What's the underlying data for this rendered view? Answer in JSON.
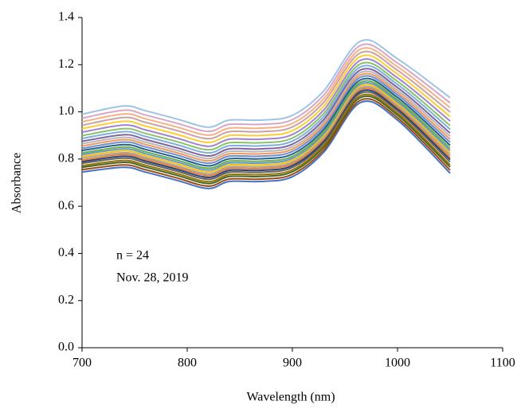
{
  "chart_data": {
    "type": "line",
    "x": [
      700,
      740,
      760,
      790,
      820,
      840,
      870,
      900,
      930,
      965,
      1000,
      1050
    ],
    "series": [
      {
        "color": "#4472c4",
        "values": [
          0.745,
          0.765,
          0.745,
          0.71,
          0.675,
          0.705,
          0.705,
          0.725,
          0.83,
          1.04,
          0.965,
          0.74
        ]
      },
      {
        "color": "#9e480e",
        "values": [
          0.755,
          0.775,
          0.755,
          0.72,
          0.685,
          0.715,
          0.715,
          0.735,
          0.84,
          1.05,
          0.975,
          0.753
        ]
      },
      {
        "color": "#43682b",
        "values": [
          0.765,
          0.786,
          0.766,
          0.731,
          0.696,
          0.726,
          0.726,
          0.746,
          0.851,
          1.061,
          0.986,
          0.766
        ]
      },
      {
        "color": "#997300",
        "values": [
          0.772,
          0.794,
          0.774,
          0.739,
          0.704,
          0.734,
          0.734,
          0.754,
          0.859,
          1.069,
          0.994,
          0.775
        ]
      },
      {
        "color": "#636363",
        "values": [
          0.782,
          0.804,
          0.784,
          0.749,
          0.714,
          0.744,
          0.744,
          0.764,
          0.869,
          1.079,
          1.004,
          0.788
        ]
      },
      {
        "color": "#264478",
        "values": [
          0.789,
          0.812,
          0.792,
          0.757,
          0.722,
          0.752,
          0.752,
          0.772,
          0.877,
          1.087,
          1.012,
          0.798
        ]
      },
      {
        "color": "#ed7d31",
        "values": [
          0.796,
          0.82,
          0.8,
          0.765,
          0.73,
          0.76,
          0.76,
          0.78,
          0.885,
          1.095,
          1.02,
          0.807
        ]
      },
      {
        "color": "#a5a5a5",
        "values": [
          0.804,
          0.827,
          0.807,
          0.772,
          0.737,
          0.767,
          0.767,
          0.787,
          0.892,
          1.102,
          1.027,
          0.817
        ]
      },
      {
        "color": "#ffc000",
        "values": [
          0.811,
          0.835,
          0.815,
          0.78,
          0.745,
          0.775,
          0.775,
          0.795,
          0.9,
          1.11,
          1.035,
          0.826
        ]
      },
      {
        "color": "#5b9bd5",
        "values": [
          0.819,
          0.843,
          0.823,
          0.788,
          0.753,
          0.783,
          0.783,
          0.803,
          0.908,
          1.118,
          1.043,
          0.836
        ]
      },
      {
        "color": "#70ad47",
        "values": [
          0.826,
          0.851,
          0.831,
          0.796,
          0.761,
          0.791,
          0.791,
          0.811,
          0.916,
          1.126,
          1.051,
          0.846
        ]
      },
      {
        "color": "#255e91",
        "values": [
          0.836,
          0.861,
          0.841,
          0.806,
          0.771,
          0.801,
          0.801,
          0.821,
          0.926,
          1.136,
          1.061,
          0.858
        ]
      },
      {
        "color": "#698ed0",
        "values": [
          0.845,
          0.872,
          0.852,
          0.817,
          0.782,
          0.812,
          0.812,
          0.832,
          0.937,
          1.147,
          1.072,
          0.871
        ]
      },
      {
        "color": "#f1975a",
        "values": [
          0.855,
          0.882,
          0.862,
          0.827,
          0.792,
          0.822,
          0.822,
          0.842,
          0.947,
          1.157,
          1.082,
          0.884
        ]
      },
      {
        "color": "#b7b7b7",
        "values": [
          0.865,
          0.892,
          0.872,
          0.837,
          0.802,
          0.832,
          0.832,
          0.852,
          0.957,
          1.167,
          1.092,
          0.897
        ]
      },
      {
        "color": "#8064a2",
        "values": [
          0.875,
          0.903,
          0.883,
          0.848,
          0.813,
          0.843,
          0.843,
          0.863,
          0.968,
          1.178,
          1.103,
          0.91
        ]
      },
      {
        "color": "#7cafdd",
        "values": [
          0.887,
          0.916,
          0.896,
          0.861,
          0.826,
          0.856,
          0.856,
          0.876,
          0.981,
          1.191,
          1.116,
          0.926
        ]
      },
      {
        "color": "#8cc168",
        "values": [
          0.899,
          0.929,
          0.909,
          0.874,
          0.839,
          0.869,
          0.869,
          0.889,
          0.994,
          1.204,
          1.129,
          0.942
        ]
      },
      {
        "color": "#9e86c9",
        "values": [
          0.914,
          0.944,
          0.924,
          0.889,
          0.854,
          0.884,
          0.884,
          0.904,
          1.009,
          1.219,
          1.144,
          0.961
        ]
      },
      {
        "color": "#ffcd33",
        "values": [
          0.929,
          0.96,
          0.94,
          0.905,
          0.87,
          0.9,
          0.9,
          0.92,
          1.025,
          1.235,
          1.16,
          0.98
        ]
      },
      {
        "color": "#c9a3a3",
        "values": [
          0.943,
          0.976,
          0.956,
          0.921,
          0.886,
          0.916,
          0.916,
          0.936,
          1.041,
          1.251,
          1.176,
          0.999
        ]
      },
      {
        "color": "#f4b183",
        "values": [
          0.958,
          0.991,
          0.971,
          0.936,
          0.901,
          0.931,
          0.931,
          0.951,
          1.056,
          1.266,
          1.191,
          1.018
        ]
      },
      {
        "color": "#d9a6c4",
        "values": [
          0.973,
          1.007,
          0.987,
          0.952,
          0.917,
          0.947,
          0.947,
          0.967,
          1.072,
          1.282,
          1.207,
          1.038
        ]
      },
      {
        "color": "#9dc3e6",
        "values": [
          0.99,
          1.025,
          1.005,
          0.97,
          0.935,
          0.965,
          0.965,
          0.985,
          1.09,
          1.3,
          1.225,
          1.06
        ]
      }
    ],
    "xlabel": "Wavelength (nm)",
    "ylabel": "Absorbance",
    "annotations": [
      "n = 24",
      "Nov. 28, 2019"
    ],
    "xlim": [
      700,
      1100
    ],
    "xticks": [
      700,
      800,
      900,
      1000,
      1100
    ],
    "ylim": [
      0,
      1.4
    ],
    "yticks": [
      {
        "value": 0,
        "label": "0.0"
      },
      0.2,
      0.4,
      0.6,
      0.8,
      {
        "value": 1,
        "label": "1.0"
      },
      1.2,
      1.4
    ],
    "grid": false
  }
}
